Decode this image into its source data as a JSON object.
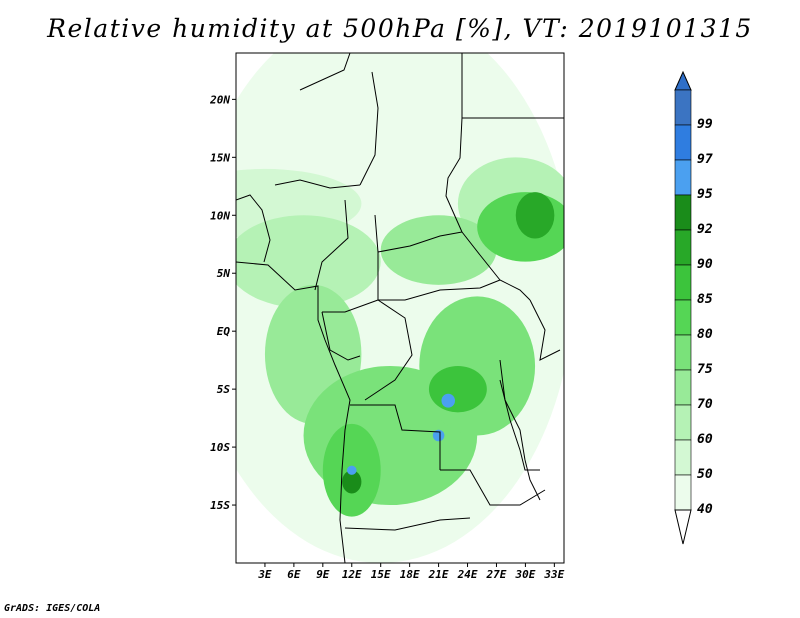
{
  "title": "Relative humidity at 500hPa [%], VT: 2019101315",
  "credit": "GrADS: IGES/COLA",
  "map": {
    "lat_range": [
      -20,
      24
    ],
    "lon_range": [
      0,
      34
    ],
    "lat_ticks": [
      {
        "label": "20N",
        "value": 20
      },
      {
        "label": "15N",
        "value": 15
      },
      {
        "label": "10N",
        "value": 10
      },
      {
        "label": "5N",
        "value": 5
      },
      {
        "label": "EQ",
        "value": 0
      },
      {
        "label": "5S",
        "value": -5
      },
      {
        "label": "10S",
        "value": -10
      },
      {
        "label": "15S",
        "value": -15
      }
    ],
    "lon_ticks": [
      {
        "label": "3E",
        "value": 3
      },
      {
        "label": "6E",
        "value": 6
      },
      {
        "label": "9E",
        "value": 9
      },
      {
        "label": "12E",
        "value": 12
      },
      {
        "label": "15E",
        "value": 15
      },
      {
        "label": "18E",
        "value": 18
      },
      {
        "label": "21E",
        "value": 21
      },
      {
        "label": "24E",
        "value": 24
      },
      {
        "label": "27E",
        "value": 27
      },
      {
        "label": "30E",
        "value": 30
      },
      {
        "label": "33E",
        "value": 33
      }
    ],
    "humidity_areas": [
      {
        "level": 40,
        "lon": 15,
        "lat": 4,
        "rx": 20,
        "ry": 24
      },
      {
        "level": 50,
        "lon": 3,
        "lat": 11,
        "rx": 10,
        "ry": 3
      },
      {
        "level": 60,
        "lon": 29,
        "lat": 11,
        "rx": 6,
        "ry": 4
      },
      {
        "level": 60,
        "lon": 7,
        "lat": 6,
        "rx": 8,
        "ry": 4
      },
      {
        "level": 70,
        "lon": 21,
        "lat": 7,
        "rx": 6,
        "ry": 3
      },
      {
        "level": 70,
        "lon": 8,
        "lat": -2,
        "rx": 5,
        "ry": 6
      },
      {
        "level": 75,
        "lon": 16,
        "lat": -9,
        "rx": 9,
        "ry": 6
      },
      {
        "level": 75,
        "lon": 25,
        "lat": -3,
        "rx": 6,
        "ry": 6
      },
      {
        "level": 80,
        "lon": 30,
        "lat": 9,
        "rx": 5,
        "ry": 3
      },
      {
        "level": 80,
        "lon": 12,
        "lat": -12,
        "rx": 3,
        "ry": 4
      },
      {
        "level": 85,
        "lon": 23,
        "lat": -5,
        "rx": 3,
        "ry": 2
      },
      {
        "level": 90,
        "lon": 31,
        "lat": 10,
        "rx": 2,
        "ry": 2
      },
      {
        "level": 92,
        "lon": 12,
        "lat": -13,
        "rx": 1,
        "ry": 1
      },
      {
        "level": 95,
        "lon": 22,
        "lat": -6,
        "rx": 0.7,
        "ry": 0.6
      },
      {
        "level": 95,
        "lon": 21,
        "lat": -9,
        "rx": 0.6,
        "ry": 0.5
      },
      {
        "level": 95,
        "lon": 12,
        "lat": -12,
        "rx": 0.5,
        "ry": 0.4
      }
    ]
  },
  "colorbar": {
    "levels": [
      {
        "label": "99",
        "color": "#3b74c2"
      },
      {
        "label": "97",
        "color": "#2f7de0"
      },
      {
        "label": "95",
        "color": "#4ba0f0"
      },
      {
        "label": "92",
        "color": "#1a8c1a"
      },
      {
        "label": "90",
        "color": "#28a828"
      },
      {
        "label": "85",
        "color": "#3cc43c"
      },
      {
        "label": "80",
        "color": "#55d655"
      },
      {
        "label": "75",
        "color": "#7ae27a"
      },
      {
        "label": "70",
        "color": "#98ea98"
      },
      {
        "label": "60",
        "color": "#b5f2b5"
      },
      {
        "label": "50",
        "color": "#d3f8d3"
      },
      {
        "label": "40",
        "color": "#ecfcec"
      }
    ],
    "top_color": "#2f6fc8",
    "bottom_color": "#ffffff"
  }
}
